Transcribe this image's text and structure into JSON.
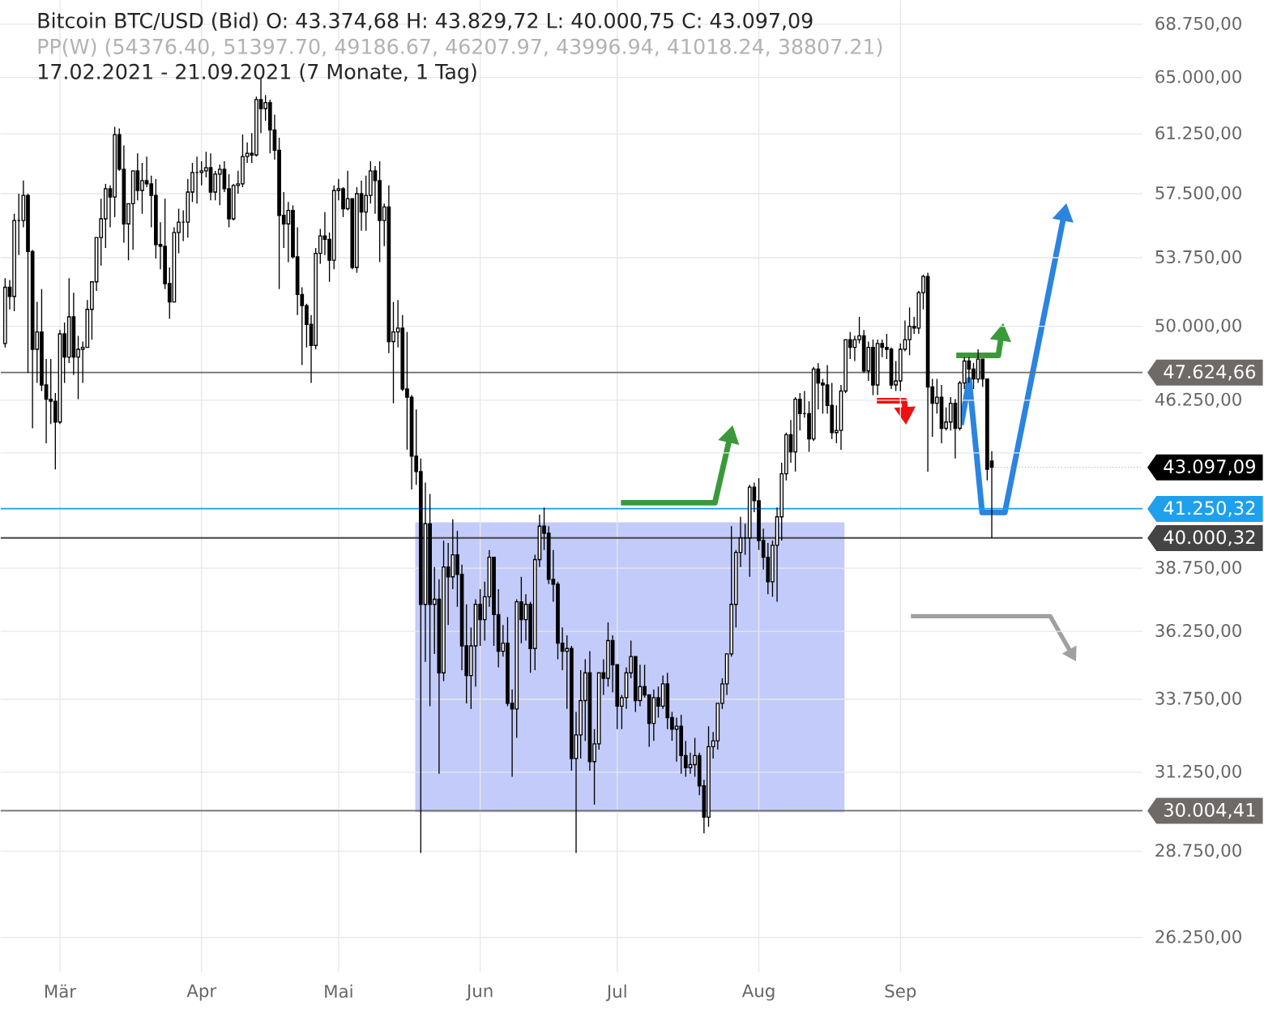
{
  "chart_data": {
    "type": "candlestick",
    "title": "Bitcoin BTC/USD (Bid) O: 43.374,68 H: 43.829,72 L: 40.000,75 C: 43.097,09",
    "subtitle": "PP(W) (54376.40, 51397.70, 49186.67, 46207.97, 43996.94, 41018.24, 38807.21)",
    "annotations": [
      "17.02.2021 - 21.09.2021 (7 Monate, 1 Tag)",
      {
        "text": "43.097,09",
        "x": "2021-09-21",
        "y": 43097.09
      }
    ],
    "x": [
      "2021-02-17",
      "2021-02-18",
      "2021-02-19",
      "2021-02-20",
      "2021-02-21",
      "2021-02-22",
      "2021-02-23",
      "2021-02-24",
      "2021-02-25",
      "2021-02-26",
      "2021-02-27",
      "2021-02-28",
      "2021-03-01",
      "2021-03-02",
      "2021-03-03",
      "2021-03-04",
      "2021-03-05",
      "2021-03-06",
      "2021-03-07",
      "2021-03-08",
      "2021-03-09",
      "2021-03-10",
      "2021-03-11",
      "2021-03-12",
      "2021-03-13",
      "2021-03-14",
      "2021-03-15",
      "2021-03-16",
      "2021-03-17",
      "2021-03-18",
      "2021-03-19",
      "2021-03-20",
      "2021-03-21",
      "2021-03-22",
      "2021-03-23",
      "2021-03-24",
      "2021-03-25",
      "2021-03-26",
      "2021-03-27",
      "2021-03-28",
      "2021-03-29",
      "2021-03-30",
      "2021-03-31",
      "2021-04-01",
      "2021-04-02",
      "2021-04-03",
      "2021-04-04",
      "2021-04-05",
      "2021-04-06",
      "2021-04-07",
      "2021-04-08",
      "2021-04-09",
      "2021-04-10",
      "2021-04-11",
      "2021-04-12",
      "2021-04-13",
      "2021-04-14",
      "2021-04-15",
      "2021-04-16",
      "2021-04-17",
      "2021-04-18",
      "2021-04-19",
      "2021-04-20",
      "2021-04-21",
      "2021-04-22",
      "2021-04-23",
      "2021-04-24",
      "2021-04-25",
      "2021-04-26",
      "2021-04-27",
      "2021-04-28",
      "2021-04-29",
      "2021-04-30",
      "2021-05-01",
      "2021-05-02",
      "2021-05-03",
      "2021-05-04",
      "2021-05-05",
      "2021-05-06",
      "2021-05-07",
      "2021-05-08",
      "2021-05-09",
      "2021-05-10",
      "2021-05-11",
      "2021-05-12",
      "2021-05-13",
      "2021-05-14",
      "2021-05-15",
      "2021-05-16",
      "2021-05-17",
      "2021-05-18",
      "2021-05-19",
      "2021-05-20",
      "2021-05-21",
      "2021-05-22",
      "2021-05-23",
      "2021-05-24",
      "2021-05-25",
      "2021-05-26",
      "2021-05-27",
      "2021-05-28",
      "2021-05-29",
      "2021-05-30",
      "2021-05-31",
      "2021-06-01",
      "2021-06-02",
      "2021-06-03",
      "2021-06-04",
      "2021-06-05",
      "2021-06-06",
      "2021-06-07",
      "2021-06-08",
      "2021-06-09",
      "2021-06-10",
      "2021-06-11",
      "2021-06-12",
      "2021-06-13",
      "2021-06-14",
      "2021-06-15",
      "2021-06-16",
      "2021-06-17",
      "2021-06-18",
      "2021-06-19",
      "2021-06-20",
      "2021-06-21",
      "2021-06-22",
      "2021-06-23",
      "2021-06-24",
      "2021-06-25",
      "2021-06-26",
      "2021-06-27",
      "2021-06-28",
      "2021-06-29",
      "2021-06-30",
      "2021-07-01",
      "2021-07-02",
      "2021-07-03",
      "2021-07-04",
      "2021-07-05",
      "2021-07-06",
      "2021-07-07",
      "2021-07-08",
      "2021-07-09",
      "2021-07-10",
      "2021-07-11",
      "2021-07-12",
      "2021-07-13",
      "2021-07-14",
      "2021-07-15",
      "2021-07-16",
      "2021-07-17",
      "2021-07-18",
      "2021-07-19",
      "2021-07-20",
      "2021-07-21",
      "2021-07-22",
      "2021-07-23",
      "2021-07-24",
      "2021-07-25",
      "2021-07-26",
      "2021-07-27",
      "2021-07-28",
      "2021-07-29",
      "2021-07-30",
      "2021-07-31",
      "2021-08-01",
      "2021-08-02",
      "2021-08-03",
      "2021-08-04",
      "2021-08-05",
      "2021-08-06",
      "2021-08-07",
      "2021-08-08",
      "2021-08-09",
      "2021-08-10",
      "2021-08-11",
      "2021-08-12",
      "2021-08-13",
      "2021-08-14",
      "2021-08-15",
      "2021-08-16",
      "2021-08-17",
      "2021-08-18",
      "2021-08-19",
      "2021-08-20",
      "2021-08-21",
      "2021-08-22",
      "2021-08-23",
      "2021-08-24",
      "2021-08-25",
      "2021-08-26",
      "2021-08-27",
      "2021-08-28",
      "2021-08-29",
      "2021-08-30",
      "2021-08-31",
      "2021-09-01",
      "2021-09-02",
      "2021-09-03",
      "2021-09-04",
      "2021-09-05",
      "2021-09-06",
      "2021-09-07",
      "2021-09-08",
      "2021-09-09",
      "2021-09-10",
      "2021-09-11",
      "2021-09-12",
      "2021-09-13",
      "2021-09-14",
      "2021-09-15",
      "2021-09-16",
      "2021-09-17",
      "2021-09-18",
      "2021-09-19",
      "2021-09-20",
      "2021-09-21"
    ],
    "ohlc": [
      [
        49100,
        52600,
        48900,
        52100
      ],
      [
        52100,
        52500,
        50900,
        51600
      ],
      [
        51600,
        56300,
        50800,
        55900
      ],
      [
        55900,
        57500,
        53900,
        55900
      ],
      [
        55900,
        58300,
        55500,
        57400
      ],
      [
        57400,
        57500,
        47600,
        54100
      ],
      [
        54100,
        54200,
        44900,
        48800
      ],
      [
        48800,
        51300,
        47100,
        49700
      ],
      [
        49700,
        52000,
        46700,
        47000
      ],
      [
        47000,
        48300,
        44200,
        46300
      ],
      [
        46300,
        48300,
        45100,
        46200
      ],
      [
        46200,
        46600,
        43000,
        45200
      ],
      [
        45200,
        49800,
        45100,
        49600
      ],
      [
        49600,
        50200,
        47100,
        48400
      ],
      [
        48400,
        52600,
        48100,
        50500
      ],
      [
        50500,
        51800,
        47500,
        48400
      ],
      [
        48400,
        49500,
        46300,
        48800
      ],
      [
        48800,
        49200,
        47100,
        48900
      ],
      [
        48900,
        51400,
        48900,
        50900
      ],
      [
        50900,
        52400,
        49300,
        52400
      ],
      [
        52400,
        54900,
        51900,
        54900
      ],
      [
        54900,
        57200,
        53300,
        56000
      ],
      [
        56000,
        58100,
        54300,
        57800
      ],
      [
        57800,
        58000,
        55500,
        57300
      ],
      [
        57300,
        61700,
        56100,
        61200
      ],
      [
        61200,
        61600,
        58900,
        59000
      ],
      [
        59000,
        60500,
        54600,
        55700
      ],
      [
        55700,
        56900,
        53600,
        56900
      ],
      [
        56900,
        58900,
        54200,
        58900
      ],
      [
        58900,
        60000,
        57100,
        57700
      ],
      [
        57700,
        59400,
        56300,
        58300
      ],
      [
        58300,
        59800,
        57900,
        58100
      ],
      [
        58100,
        58600,
        55500,
        57400
      ],
      [
        57400,
        58400,
        53700,
        54500
      ],
      [
        54500,
        55800,
        53100,
        54400
      ],
      [
        54400,
        57200,
        52000,
        52300
      ],
      [
        52300,
        53200,
        50400,
        51300
      ],
      [
        51300,
        55500,
        51300,
        55200
      ],
      [
        55200,
        56600,
        54000,
        55800
      ],
      [
        55800,
        56500,
        54700,
        55800
      ],
      [
        55800,
        58400,
        54900,
        57600
      ],
      [
        57600,
        59400,
        57000,
        58800
      ],
      [
        58800,
        59800,
        56900,
        58800
      ],
      [
        58800,
        59500,
        58000,
        58900
      ],
      [
        58900,
        60100,
        58500,
        59100
      ],
      [
        59100,
        60000,
        57100,
        57600
      ],
      [
        57600,
        58900,
        57100,
        58700
      ],
      [
        58700,
        59300,
        56800,
        59000
      ],
      [
        59000,
        59500,
        57600,
        57800
      ],
      [
        57800,
        58700,
        55500,
        56000
      ],
      [
        56000,
        58100,
        55900,
        58000
      ],
      [
        58000,
        58900,
        57500,
        58100
      ],
      [
        58100,
        61200,
        57900,
        59800
      ],
      [
        59800,
        60700,
        59400,
        60000
      ],
      [
        60000,
        61300,
        59400,
        59900
      ],
      [
        59900,
        63700,
        59800,
        63500
      ],
      [
        63500,
        64900,
        61300,
        62900
      ],
      [
        62900,
        63800,
        62100,
        63300
      ],
      [
        63300,
        63500,
        60000,
        61500
      ],
      [
        61500,
        62500,
        59600,
        60200
      ],
      [
        60200,
        61000,
        52000,
        56200
      ],
      [
        56200,
        57600,
        54300,
        55700
      ],
      [
        55700,
        57000,
        53500,
        56500
      ],
      [
        56500,
        56800,
        53700,
        53800
      ],
      [
        53800,
        55500,
        50600,
        51700
      ],
      [
        51700,
        52100,
        48000,
        51100
      ],
      [
        51100,
        51200,
        48900,
        50100
      ],
      [
        50100,
        50600,
        47100,
        49000
      ],
      [
        49000,
        54300,
        48800,
        54000
      ],
      [
        54000,
        55400,
        53400,
        55000
      ],
      [
        55000,
        56400,
        53900,
        54800
      ],
      [
        54800,
        55200,
        52400,
        53600
      ],
      [
        53600,
        58000,
        53100,
        57700
      ],
      [
        57700,
        58400,
        57100,
        57800
      ],
      [
        57800,
        57900,
        56100,
        56600
      ],
      [
        56600,
        58900,
        56500,
        57200
      ],
      [
        57200,
        57200,
        53100,
        53200
      ],
      [
        53200,
        57900,
        52900,
        57500
      ],
      [
        57500,
        58300,
        55300,
        56400
      ],
      [
        56400,
        58600,
        55300,
        57400
      ],
      [
        57400,
        59500,
        56900,
        58900
      ],
      [
        58900,
        59200,
        56300,
        58300
      ],
      [
        58300,
        59500,
        53500,
        55900
      ],
      [
        55900,
        56900,
        54400,
        56700
      ],
      [
        56700,
        58000,
        48600,
        49200
      ],
      [
        49200,
        51300,
        46100,
        49700
      ],
      [
        49700,
        51400,
        48900,
        49900
      ],
      [
        49900,
        50600,
        46700,
        46800
      ],
      [
        46800,
        49700,
        43900,
        46400
      ],
      [
        46400,
        46500,
        42100,
        43600
      ],
      [
        43600,
        45800,
        42300,
        42900
      ],
      [
        42900,
        43500,
        28700,
        37300
      ],
      [
        37300,
        42400,
        35100,
        40600
      ],
      [
        40600,
        41900,
        33500,
        37300
      ],
      [
        37300,
        38800,
        35400,
        37500
      ],
      [
        37500,
        38300,
        31200,
        34700
      ],
      [
        34700,
        39900,
        34400,
        38800
      ],
      [
        38800,
        39800,
        36500,
        38400
      ],
      [
        38400,
        40800,
        37900,
        39300
      ],
      [
        39300,
        40300,
        37200,
        38500
      ],
      [
        38500,
        38900,
        34800,
        35700
      ],
      [
        35700,
        37300,
        33600,
        34600
      ],
      [
        34600,
        36400,
        33400,
        35700
      ],
      [
        35700,
        37500,
        34200,
        37300
      ],
      [
        37300,
        37900,
        35700,
        36700
      ],
      [
        36700,
        38200,
        35900,
        37600
      ],
      [
        37600,
        39500,
        37200,
        39200
      ],
      [
        39200,
        39200,
        35700,
        36900
      ],
      [
        36900,
        37900,
        34900,
        35500
      ],
      [
        35500,
        36500,
        35300,
        35800
      ],
      [
        35800,
        36800,
        33500,
        33600
      ],
      [
        33600,
        34100,
        31100,
        33400
      ],
      [
        33400,
        37500,
        32400,
        37400
      ],
      [
        37400,
        38400,
        35800,
        36700
      ],
      [
        36700,
        37700,
        35900,
        37300
      ],
      [
        37300,
        37400,
        34700,
        35600
      ],
      [
        35600,
        39300,
        34800,
        39100
      ],
      [
        39100,
        41000,
        38800,
        40500
      ],
      [
        40500,
        41300,
        39500,
        40200
      ],
      [
        40200,
        40500,
        38100,
        38300
      ],
      [
        38300,
        39500,
        37400,
        38100
      ],
      [
        38100,
        38200,
        35200,
        35800
      ],
      [
        35800,
        36400,
        34800,
        35500
      ],
      [
        35500,
        36100,
        33400,
        35600
      ],
      [
        35600,
        35700,
        31300,
        31700
      ],
      [
        31700,
        33300,
        28700,
        32500
      ],
      [
        32500,
        34800,
        31700,
        33700
      ],
      [
        33700,
        35200,
        32300,
        34700
      ],
      [
        34700,
        35500,
        31300,
        31600
      ],
      [
        31600,
        32700,
        30200,
        32200
      ],
      [
        32200,
        34700,
        32000,
        34700
      ],
      [
        34700,
        35200,
        33900,
        34500
      ],
      [
        34500,
        36600,
        34200,
        35900
      ],
      [
        35900,
        36100,
        34000,
        35000
      ],
      [
        35000,
        35000,
        32700,
        33500
      ],
      [
        33500,
        33900,
        32700,
        33800
      ],
      [
        33800,
        34900,
        33400,
        34700
      ],
      [
        34700,
        35900,
        34500,
        35300
      ],
      [
        35300,
        35300,
        33300,
        33700
      ],
      [
        33700,
        35000,
        33500,
        34200
      ],
      [
        34200,
        35000,
        33800,
        33900
      ],
      [
        33900,
        33900,
        32100,
        32900
      ],
      [
        32900,
        34100,
        32300,
        33800
      ],
      [
        33800,
        34200,
        33100,
        33500
      ],
      [
        33500,
        34600,
        33400,
        34300
      ],
      [
        34300,
        34700,
        32700,
        33100
      ],
      [
        33100,
        33300,
        32300,
        32700
      ],
      [
        32700,
        33100,
        31600,
        32800
      ],
      [
        32800,
        33200,
        31200,
        31800
      ],
      [
        31800,
        32300,
        31100,
        31400
      ],
      [
        31400,
        31900,
        31200,
        31500
      ],
      [
        31500,
        32400,
        31100,
        31800
      ],
      [
        31800,
        31900,
        30500,
        30800
      ],
      [
        30800,
        31000,
        29300,
        29800
      ],
      [
        29800,
        32800,
        29500,
        32100
      ],
      [
        32100,
        32600,
        31700,
        32300
      ],
      [
        32300,
        33600,
        32000,
        33600
      ],
      [
        33600,
        34500,
        33400,
        34300
      ],
      [
        34300,
        35400,
        33900,
        35400
      ],
      [
        35400,
        40500,
        35300,
        37300
      ],
      [
        37300,
        39500,
        36400,
        39400
      ],
      [
        39400,
        40900,
        38800,
        40000
      ],
      [
        40000,
        40600,
        39300,
        40000
      ],
      [
        40000,
        42300,
        38400,
        42200
      ],
      [
        42200,
        42400,
        41100,
        41600
      ],
      [
        41600,
        42600,
        39500,
        39900
      ],
      [
        39900,
        40400,
        38700,
        39200
      ],
      [
        39200,
        39800,
        37700,
        38200
      ],
      [
        38200,
        39900,
        37600,
        39700
      ],
      [
        39700,
        41300,
        37400,
        40900
      ],
      [
        40900,
        43300,
        39900,
        42800
      ],
      [
        42800,
        44700,
        42500,
        44600
      ],
      [
        44600,
        45300,
        43300,
        43800
      ],
      [
        43800,
        46400,
        42900,
        46300
      ],
      [
        46300,
        46600,
        44800,
        45600
      ],
      [
        45600,
        46700,
        45400,
        45600
      ],
      [
        45600,
        46200,
        43800,
        44400
      ],
      [
        44400,
        47900,
        44300,
        47800
      ],
      [
        47800,
        48100,
        45800,
        47100
      ],
      [
        47100,
        47300,
        45600,
        47000
      ],
      [
        47000,
        48000,
        45600,
        46000
      ],
      [
        46000,
        47100,
        44400,
        44700
      ],
      [
        44700,
        46000,
        44200,
        44800
      ],
      [
        44800,
        47000,
        43900,
        46700
      ],
      [
        46700,
        49300,
        46600,
        49300
      ],
      [
        49300,
        49700,
        48300,
        48900
      ],
      [
        48900,
        49500,
        48200,
        49300
      ],
      [
        49300,
        50500,
        49100,
        49500
      ],
      [
        49500,
        49800,
        47600,
        47700
      ],
      [
        47700,
        49200,
        47200,
        48900
      ],
      [
        48900,
        49300,
        46500,
        47000
      ],
      [
        47000,
        49300,
        46500,
        49100
      ],
      [
        49100,
        49300,
        48400,
        48900
      ],
      [
        48900,
        49600,
        48300,
        48800
      ],
      [
        48800,
        48900,
        46800,
        47000
      ],
      [
        47000,
        48200,
        46700,
        47200
      ],
      [
        47200,
        49100,
        46700,
        48800
      ],
      [
        48800,
        50300,
        48700,
        49300
      ],
      [
        49300,
        51000,
        48500,
        50000
      ],
      [
        50000,
        50500,
        49600,
        49900
      ],
      [
        49900,
        51900,
        49600,
        51800
      ],
      [
        51800,
        52800,
        50900,
        52700
      ],
      [
        52700,
        52900,
        42900,
        46900
      ],
      [
        46900,
        47300,
        44500,
        46100
      ],
      [
        46100,
        47300,
        45600,
        46400
      ],
      [
        46400,
        47000,
        44200,
        44900
      ],
      [
        44900,
        45900,
        44800,
        45200
      ],
      [
        45200,
        46400,
        44800,
        46100
      ],
      [
        46100,
        46300,
        43500,
        44900
      ],
      [
        44900,
        47200,
        44800,
        47100
      ],
      [
        47100,
        48400,
        46800,
        48200
      ],
      [
        48200,
        48400,
        47100,
        47800
      ],
      [
        47800,
        48100,
        46800,
        47300
      ],
      [
        47300,
        48800,
        47100,
        48300
      ],
      [
        48300,
        48300,
        46900,
        47300
      ],
      [
        47300,
        47300,
        42500,
        43000
      ],
      [
        43374.68,
        43829.72,
        40000.75,
        43097.09
      ]
    ],
    "xlim": [
      "2021-02-16",
      "2021-10-24"
    ],
    "xticks": [
      {
        "value": "2021-03-01",
        "label": "Mär"
      },
      {
        "value": "2021-04-01",
        "label": "Apr"
      },
      {
        "value": "2021-05-01",
        "label": "Mai"
      },
      {
        "value": "2021-06-01",
        "label": "Jun"
      },
      {
        "value": "2021-07-01",
        "label": "Jul"
      },
      {
        "value": "2021-08-01",
        "label": "Aug"
      },
      {
        "value": "2021-09-01",
        "label": "Sep"
      }
    ],
    "ylim": [
      25300,
      70500
    ],
    "yticks": [
      {
        "value": 26250,
        "label": "26.250,00"
      },
      {
        "value": 28750,
        "label": "28.750,00"
      },
      {
        "value": 31250,
        "label": "31.250,00"
      },
      {
        "value": 33750,
        "label": "33.750,00"
      },
      {
        "value": 36250,
        "label": "36.250,00"
      },
      {
        "value": 38750,
        "label": "38.750,00"
      },
      {
        "value": 43750,
        "label": null
      },
      {
        "value": 46250,
        "label": "46.250,00"
      },
      {
        "value": 50000,
        "label": "50.000,00"
      },
      {
        "value": 53750,
        "label": "53.750,00"
      },
      {
        "value": 57500,
        "label": "57.500,00"
      },
      {
        "value": 61250,
        "label": "61.250,00"
      },
      {
        "value": 65000,
        "label": "65.000,00"
      },
      {
        "value": 68750,
        "label": "68.750,00"
      }
    ],
    "log": "y",
    "grid": true,
    "ref_lines": [
      {
        "axis": "y",
        "value": 47624.66,
        "label": "47.624,66",
        "color": "#6e6a68"
      },
      {
        "axis": "y",
        "value": 40000.32,
        "label": "40.000,32",
        "color": "#444444"
      },
      {
        "axis": "y",
        "value": 41250.32,
        "label": "41.250,32",
        "color": "#1ea0ec"
      },
      {
        "axis": "y",
        "value": 30004.41,
        "label": "30.004,41",
        "color": "#6e6a68"
      }
    ]
  }
}
